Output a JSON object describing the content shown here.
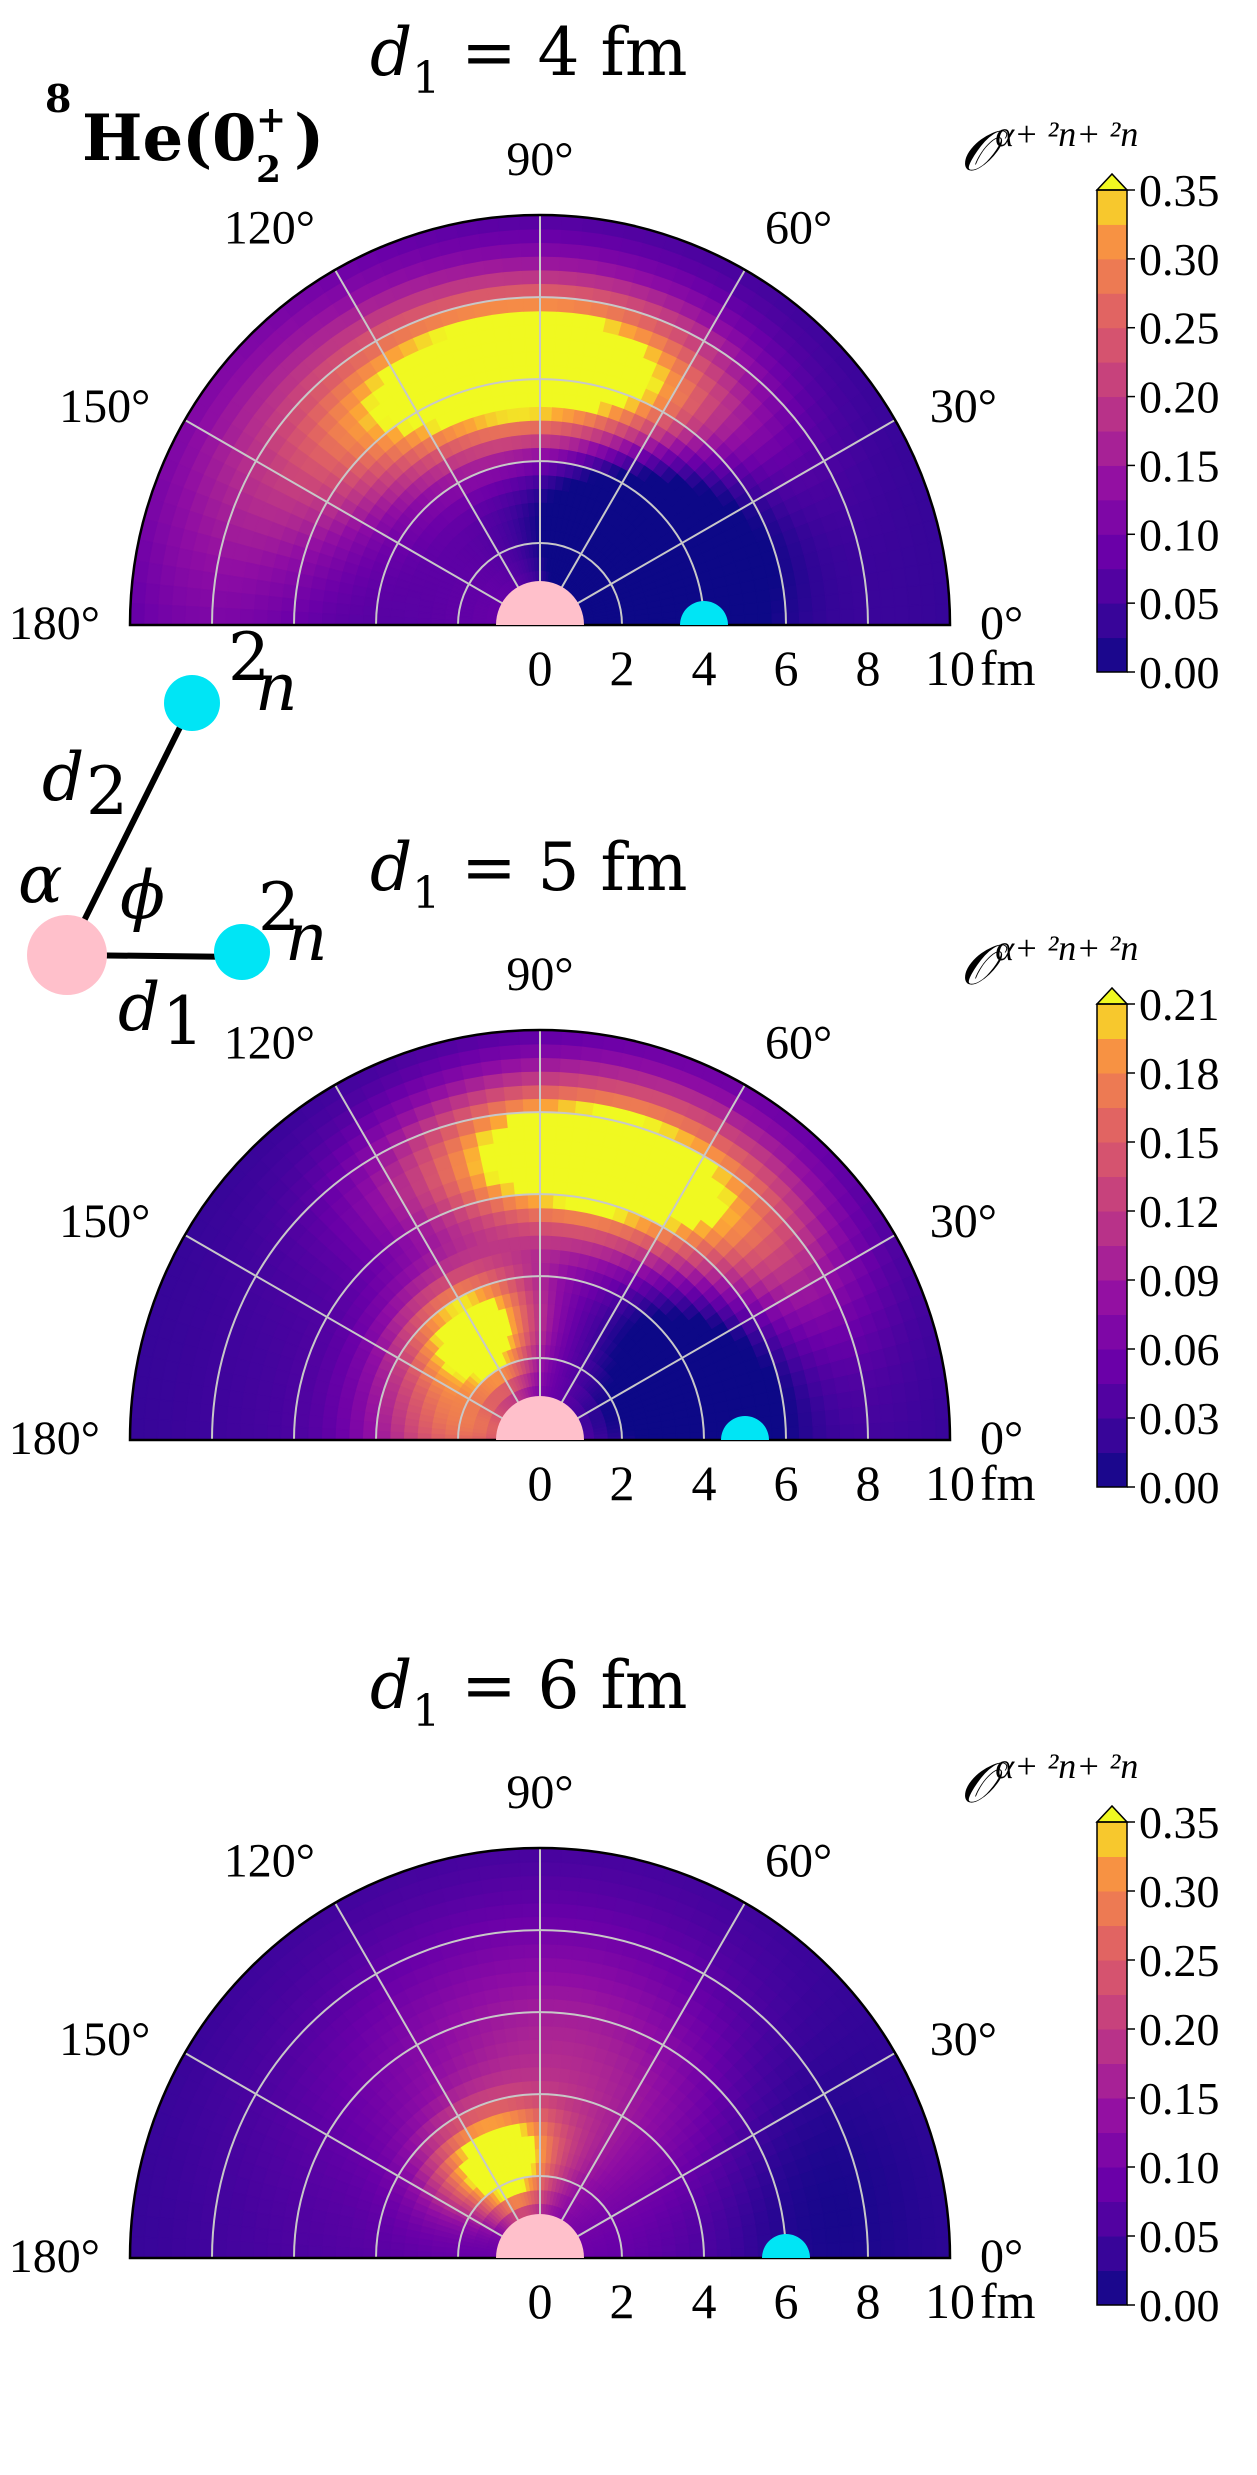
{
  "figure": {
    "state_label": {
      "nucleus": "He",
      "mass": "8",
      "state": "0",
      "state_sub": "2",
      "state_sup": "+"
    }
  },
  "schematic": {
    "alpha_label": "α",
    "phi_label": "ϕ",
    "d1_label": "d",
    "d1_sub": "1",
    "d2_label": "d",
    "d2_sub": "2",
    "neutron_label": "n",
    "neutron_pre": "2",
    "colors": {
      "alpha": "#ffc0cb",
      "neutron": "#00e5f5"
    }
  },
  "chart_data": [
    {
      "type": "heatmap",
      "projection": "polar-half",
      "title_var": "d",
      "title_sub": "1",
      "title_rest": " = 4 fm",
      "d1": 4,
      "angle_ticks": [
        "0°",
        "30°",
        "60°",
        "90°",
        "120°",
        "150°",
        "180°"
      ],
      "radial_ticks": [
        "0",
        "2",
        "4",
        "6",
        "8",
        "10"
      ],
      "radial_unit": "fm",
      "rlim": [
        0,
        10
      ],
      "colorbar_label": "𝒪",
      "colorbar_sup": "α+ ²n+ ²n",
      "colorbar_ticks": [
        "0.00",
        "0.05",
        "0.10",
        "0.15",
        "0.20",
        "0.25",
        "0.30",
        "0.35"
      ],
      "vmin": 0,
      "vmax": 0.35,
      "colormap": "plasma",
      "blobs": [
        {
          "r": 6.3,
          "phi": 108,
          "amp": 0.33,
          "sr": 1.4,
          "sphi": 28
        },
        {
          "r": 6.3,
          "phi": 72,
          "amp": 0.25,
          "sr": 1.5,
          "sphi": 22
        },
        {
          "r": 8.5,
          "phi": 150,
          "amp": 0.1,
          "sr": 1.8,
          "sphi": 30
        }
      ],
      "hole": {
        "r": 3.0,
        "phi": 40,
        "depth": 0.25,
        "sr": 1.9,
        "sphi": 35
      }
    },
    {
      "type": "heatmap",
      "projection": "polar-half",
      "title_var": "d",
      "title_sub": "1",
      "title_rest": " = 5 fm",
      "d1": 5,
      "angle_ticks": [
        "0°",
        "30°",
        "60°",
        "90°",
        "120°",
        "150°",
        "180°"
      ],
      "radial_ticks": [
        "0",
        "2",
        "4",
        "6",
        "8",
        "10"
      ],
      "radial_unit": "fm",
      "rlim": [
        0,
        10
      ],
      "colorbar_label": "𝒪",
      "colorbar_sup": "α+ ²n+ ²n",
      "colorbar_ticks": [
        "0.00",
        "0.03",
        "0.06",
        "0.09",
        "0.12",
        "0.15",
        "0.18",
        "0.21"
      ],
      "vmin": 0,
      "vmax": 0.21,
      "colormap": "plasma",
      "blobs": [
        {
          "r": 7.0,
          "phi": 88,
          "amp": 0.205,
          "sr": 1.3,
          "sphi": 22
        },
        {
          "r": 3.0,
          "phi": 120,
          "amp": 0.21,
          "sr": 1.1,
          "sphi": 20
        },
        {
          "r": 2.0,
          "phi": 170,
          "amp": 0.12,
          "sr": 1.5,
          "sphi": 25
        },
        {
          "r": 7.0,
          "phi": 55,
          "amp": 0.14,
          "sr": 1.6,
          "sphi": 22
        }
      ],
      "hole": {
        "r": 4.0,
        "phi": 22,
        "depth": 0.11,
        "sr": 1.6,
        "sphi": 25
      }
    },
    {
      "type": "heatmap",
      "projection": "polar-half",
      "title_var": "d",
      "title_sub": "1",
      "title_rest": " = 6 fm",
      "d1": 6,
      "angle_ticks": [
        "0°",
        "30°",
        "60°",
        "90°",
        "120°",
        "150°",
        "180°"
      ],
      "radial_ticks": [
        "0",
        "2",
        "4",
        "6",
        "8",
        "10"
      ],
      "radial_unit": "fm",
      "rlim": [
        0,
        10
      ],
      "colorbar_label": "𝒪",
      "colorbar_sup": "α+ ²n+ ²n",
      "colorbar_ticks": [
        "0.00",
        "0.05",
        "0.10",
        "0.15",
        "0.20",
        "0.25",
        "0.30",
        "0.35"
      ],
      "vmin": 0,
      "vmax": 0.35,
      "colormap": "plasma",
      "blobs": [
        {
          "r": 2.5,
          "phi": 115,
          "amp": 0.34,
          "sr": 0.9,
          "sphi": 22
        },
        {
          "r": 5.0,
          "phi": 80,
          "amp": 0.12,
          "sr": 2.5,
          "sphi": 40
        }
      ],
      "hole": {
        "r": 6.5,
        "phi": 20,
        "depth": 0.06,
        "sr": 2.0,
        "sphi": 30
      }
    }
  ]
}
